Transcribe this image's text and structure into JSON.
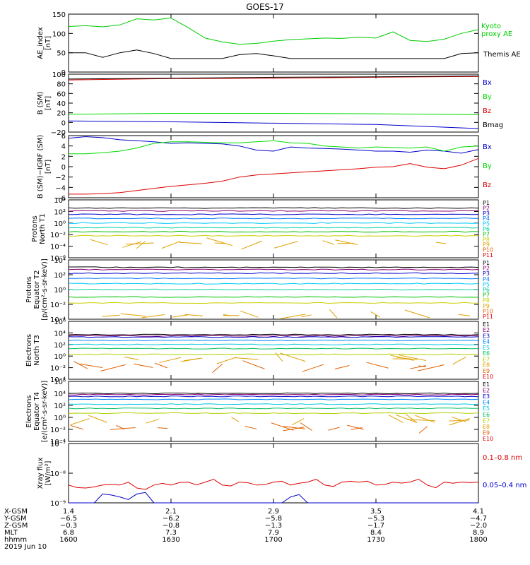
{
  "title": "GOES-17",
  "colors": {
    "black": "#000000",
    "green": "#00dd00",
    "blue": "#0000cc",
    "red": "#dd0000",
    "ae_kyoto": "#00cc00",
    "ae_themis": "#000000",
    "proton_channels": [
      "#000000",
      "#8b0070",
      "#0000cc",
      "#0077ff",
      "#00c8ff",
      "#00d0a0",
      "#00c000",
      "#c8d000",
      "#e0a000",
      "#e06000",
      "#dd0000"
    ],
    "electron_channels": [
      "#000000",
      "#8b0070",
      "#0000cc",
      "#0088ff",
      "#00c8e0",
      "#00c060",
      "#b0d000",
      "#e0a000",
      "#e06000",
      "#dd0000"
    ]
  },
  "chart_data": [
    {
      "type": "line",
      "id": "ae",
      "ylabel": "AE_index [nT]",
      "ylim": [
        0,
        150
      ],
      "yticks": [
        "0",
        "50",
        "100",
        "150"
      ],
      "x": [
        1600,
        1605,
        1610,
        1615,
        1620,
        1625,
        1630,
        1635,
        1640,
        1645,
        1650,
        1655,
        1700,
        1705,
        1710,
        1715,
        1720,
        1725,
        1730,
        1735,
        1740,
        1745,
        1750,
        1755,
        1800
      ],
      "series": [
        {
          "name": "Kyoto proxy AE",
          "color": "#00cc00",
          "values": [
            118,
            120,
            117,
            122,
            138,
            135,
            140,
            115,
            88,
            78,
            72,
            74,
            80,
            84,
            86,
            88,
            87,
            90,
            88,
            104,
            82,
            79,
            85,
            100,
            110
          ]
        },
        {
          "name": "Themis AE",
          "color": "#000000",
          "values": [
            50,
            50,
            38,
            50,
            57,
            48,
            35,
            35,
            35,
            35,
            45,
            48,
            42,
            35,
            35,
            35,
            35,
            35,
            35,
            35,
            35,
            35,
            35,
            48,
            50
          ]
        }
      ]
    },
    {
      "type": "line",
      "id": "b_sm",
      "ylabel": "B (SM) [nT]",
      "ylim": [
        -20,
        110
      ],
      "yticks": [
        "−20",
        "0",
        "20",
        "40",
        "60",
        "80",
        "100"
      ],
      "x": [
        1600,
        1630,
        1700,
        1730,
        1800
      ],
      "series": [
        {
          "name": "Bx",
          "color": "#0000cc",
          "values": [
            5,
            3,
            0,
            -3,
            -12
          ]
        },
        {
          "name": "By",
          "color": "#00dd00",
          "values": [
            20,
            22,
            22,
            21,
            19
          ]
        },
        {
          "name": "Bz",
          "color": "#dd0000",
          "values": [
            97,
            100,
            101,
            103,
            105
          ]
        },
        {
          "name": "Bmag",
          "color": "#000000",
          "values": [
            99,
            101,
            103,
            104,
            106
          ]
        }
      ]
    },
    {
      "type": "line",
      "id": "b_igrf",
      "ylabel": "B (SM)−IGRF (SM) [nT]",
      "ylim": [
        -6,
        6
      ],
      "yticks": [
        "−6",
        "−4",
        "−2",
        "0",
        "2",
        "4",
        "6"
      ],
      "x": [
        1600,
        1605,
        1610,
        1615,
        1620,
        1625,
        1630,
        1635,
        1640,
        1645,
        1650,
        1655,
        1700,
        1705,
        1710,
        1715,
        1720,
        1725,
        1730,
        1735,
        1740,
        1745,
        1750,
        1755,
        1800
      ],
      "series": [
        {
          "name": "Bx",
          "color": "#0000cc",
          "values": [
            5.5,
            5.8,
            5.6,
            5.2,
            5.0,
            4.8,
            4.5,
            4.6,
            4.5,
            4.4,
            4.0,
            3.2,
            3.0,
            3.8,
            3.6,
            3.5,
            3.4,
            3.2,
            3.0,
            3.0,
            2.8,
            3.2,
            3.0,
            2.6,
            3.3
          ]
        },
        {
          "name": "By",
          "color": "#00dd00",
          "values": [
            2.5,
            2.5,
            2.7,
            3.0,
            3.6,
            4.5,
            4.8,
            4.8,
            4.7,
            4.6,
            4.6,
            4.8,
            5.0,
            4.6,
            4.5,
            4.0,
            3.8,
            3.6,
            3.8,
            3.7,
            3.6,
            3.8,
            3.0,
            3.8,
            4.0
          ]
        },
        {
          "name": "Bz",
          "color": "#dd0000",
          "values": [
            -5.3,
            -5.3,
            -5.2,
            -5.0,
            -4.6,
            -4.2,
            -3.8,
            -3.5,
            -3.2,
            -2.8,
            -2.0,
            -1.6,
            -1.4,
            -1.2,
            -1.0,
            -0.8,
            -0.6,
            -0.4,
            -0.1,
            0.0,
            0.6,
            -0.1,
            -0.4,
            0.3,
            1.6
          ]
        }
      ]
    },
    {
      "type": "line",
      "id": "protons_t1",
      "ylabel": "Protons North T1",
      "scale": "log",
      "ylim": [
        -6,
        4
      ],
      "yticks": [
        "10⁻⁶",
        "10⁻⁴",
        "10⁻²",
        "10⁰",
        "10²",
        "10⁴"
      ],
      "series": [
        {
          "name": "P1",
          "log_values": [
            2.6
          ]
        },
        {
          "name": "P2",
          "log_values": [
            2.1
          ]
        },
        {
          "name": "P3",
          "log_values": [
            1.5
          ]
        },
        {
          "name": "P4",
          "log_values": [
            0.8
          ]
        },
        {
          "name": "P5",
          "log_values": [
            0.0
          ]
        },
        {
          "name": "P6",
          "log_values": [
            -0.8
          ]
        },
        {
          "name": "P7",
          "log_values": [
            -1.5
          ]
        },
        {
          "name": "P8",
          "log_values": [
            -2.2
          ]
        },
        {
          "name": "P9",
          "log_values": [
            -3.5
          ]
        },
        {
          "name": "P10",
          "log_values": []
        },
        {
          "name": "P11",
          "log_values": []
        }
      ]
    },
    {
      "type": "line",
      "id": "protons_t2",
      "ylabel": "Protons Equator T2 [p/(cm²-s-sr-keV)]",
      "scale": "log",
      "ylim": [
        -4,
        4
      ],
      "yticks": [
        "10⁻⁴",
        "10⁻²",
        "10⁰",
        "10²",
        "10⁴"
      ],
      "series": [
        {
          "name": "P1",
          "log_values": [
            3.0
          ]
        },
        {
          "name": "P2",
          "log_values": [
            2.7
          ]
        },
        {
          "name": "P3",
          "log_values": [
            2.2
          ]
        },
        {
          "name": "P4",
          "log_values": [
            1.5
          ]
        },
        {
          "name": "P5",
          "log_values": [
            0.8
          ]
        },
        {
          "name": "P6",
          "log_values": [
            0.0
          ]
        },
        {
          "name": "P7",
          "log_values": [
            -1.0
          ]
        },
        {
          "name": "P8",
          "log_values": [
            -1.8
          ]
        },
        {
          "name": "P9",
          "log_values": [
            -3.5
          ]
        },
        {
          "name": "P10",
          "log_values": []
        },
        {
          "name": "P11",
          "log_values": []
        }
      ]
    },
    {
      "type": "line",
      "id": "electrons_t3",
      "ylabel": "Electrons North T3",
      "scale": "log",
      "ylim": [
        -4,
        6
      ],
      "yticks": [
        "10⁻⁴",
        "10⁻²",
        "10⁰",
        "10²",
        "10⁴",
        "10⁶"
      ],
      "series": [
        {
          "name": "E1",
          "log_values": [
            3.7
          ]
        },
        {
          "name": "E2",
          "log_values": [
            3.5
          ]
        },
        {
          "name": "E3",
          "log_values": [
            3.3
          ]
        },
        {
          "name": "E4",
          "log_values": [
            2.7
          ]
        },
        {
          "name": "E5",
          "log_values": [
            2.0
          ]
        },
        {
          "name": "E6",
          "log_values": [
            1.3
          ]
        },
        {
          "name": "E7",
          "log_values": [
            0.3
          ]
        },
        {
          "name": "E8",
          "log_values": [
            -0.5
          ]
        },
        {
          "name": "E9",
          "log_values": [
            -1.8
          ]
        },
        {
          "name": "E10",
          "log_values": []
        }
      ]
    },
    {
      "type": "line",
      "id": "electrons_t4",
      "ylabel": "Electrons Equator T4 [e/(cm²-s-sr-keV)]",
      "scale": "log",
      "ylim": [
        -4,
        6
      ],
      "yticks": [
        "10⁻⁴",
        "10⁻²",
        "10⁰",
        "10²",
        "10⁴",
        "10⁶"
      ],
      "series": [
        {
          "name": "E1",
          "log_values": [
            4.0
          ]
        },
        {
          "name": "E2",
          "log_values": [
            3.8
          ]
        },
        {
          "name": "E3",
          "log_values": [
            3.5
          ]
        },
        {
          "name": "E4",
          "log_values": [
            3.0
          ]
        },
        {
          "name": "E5",
          "log_values": [
            2.2
          ]
        },
        {
          "name": "E6",
          "log_values": [
            1.5
          ]
        },
        {
          "name": "E7",
          "log_values": [
            0.7
          ]
        },
        {
          "name": "E8",
          "log_values": [
            -0.5
          ]
        },
        {
          "name": "E9",
          "log_values": [
            -1.8
          ]
        },
        {
          "name": "E10",
          "log_values": []
        }
      ]
    },
    {
      "type": "line",
      "id": "xray",
      "ylabel": "Xray flux [W/m²]",
      "scale": "log",
      "ylim": [
        -9,
        -7
      ],
      "yticks": [
        "10⁻⁹",
        "10⁻⁸",
        "10⁻⁷"
      ],
      "series": [
        {
          "name": "0.1–0.8 nm",
          "color": "#dd0000",
          "log_values": [
            -8.4,
            -8.5,
            -8.4,
            -8.4,
            -8.5,
            -8.4,
            -8.4,
            -8.3,
            -8.3,
            -8.4,
            -8.3,
            -8.4,
            -8.3,
            -8.4,
            -8.3,
            -8.4,
            -8.3,
            -8.3,
            -8.4,
            -8.3,
            -8.3,
            -8.4,
            -8.3,
            -8.3,
            -8.3
          ]
        },
        {
          "name": "0.05–0.4 nm",
          "color": "#0000cc",
          "log_values": [
            -9.5,
            -9.5,
            -8.7,
            -8.8,
            -8.7,
            -9.5,
            -9.5,
            -9.5,
            -9.5,
            -9.5,
            -9.5,
            -9.5,
            -9.5,
            -8.8,
            -9.5,
            -9.5,
            -9.5,
            -9.5,
            -9.5,
            -9.5,
            -9.5,
            -9.5,
            -9.5,
            -9.5,
            -9.5
          ]
        }
      ]
    }
  ],
  "ae_legend": {
    "kyoto": "Kyoto\nproxy AE",
    "themis": "Themis AE"
  },
  "xray_legend": {
    "long": "0.1–0.8 nm",
    "short": "0.05–0.4 nm"
  },
  "ephemeris": {
    "labels": [
      "X-GSM",
      "Y-GSM",
      "Z-GSM",
      "MLT",
      "hhmm",
      "2019 Jun 10"
    ],
    "columns": [
      {
        "x_gsm": "1.4",
        "y_gsm": "−6.5",
        "z_gsm": "−0.3",
        "mlt": "6.8",
        "hhmm": "1600"
      },
      {
        "x_gsm": "2.1",
        "y_gsm": "−6.2",
        "z_gsm": "−0.8",
        "mlt": "7.3",
        "hhmm": "1630"
      },
      {
        "x_gsm": "2.9",
        "y_gsm": "−5.8",
        "z_gsm": "−1.3",
        "mlt": "7.9",
        "hhmm": "1700"
      },
      {
        "x_gsm": "3.5",
        "y_gsm": "−5.3",
        "z_gsm": "−1.7",
        "mlt": "8.4",
        "hhmm": "1730"
      },
      {
        "x_gsm": "4.1",
        "y_gsm": "−4.7",
        "z_gsm": "−2.0",
        "mlt": "8.9",
        "hhmm": "1800"
      }
    ]
  }
}
